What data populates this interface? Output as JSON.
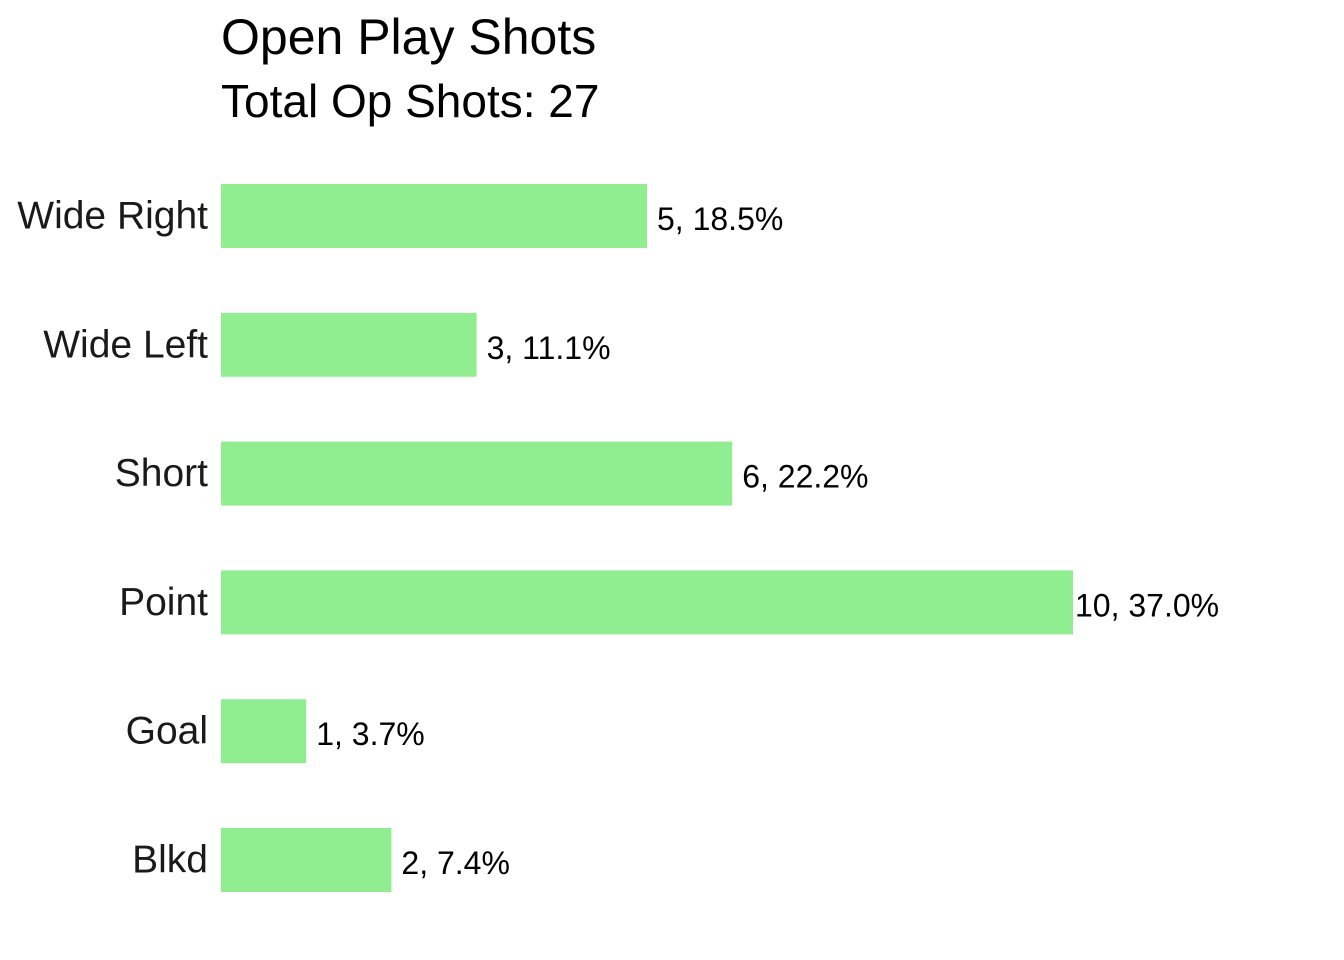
{
  "chart_data": {
    "type": "bar",
    "orientation": "horizontal",
    "title": "Open Play Shots",
    "subtitle": "Total Op Shots: 27",
    "categories": [
      "Wide Right",
      "Wide Left",
      "Short",
      "Point",
      "Goal",
      "Blkd"
    ],
    "values": [
      5,
      3,
      6,
      10,
      1,
      2
    ],
    "data_labels": [
      "5, 18.5%",
      "3, 11.1%",
      "6, 22.2%",
      "10, 37.0%",
      "1, 3.7%",
      "2, 7.4%"
    ],
    "xlim": [
      0,
      10
    ],
    "grid": false,
    "legend": "none",
    "bar_color": "#90EE90"
  }
}
